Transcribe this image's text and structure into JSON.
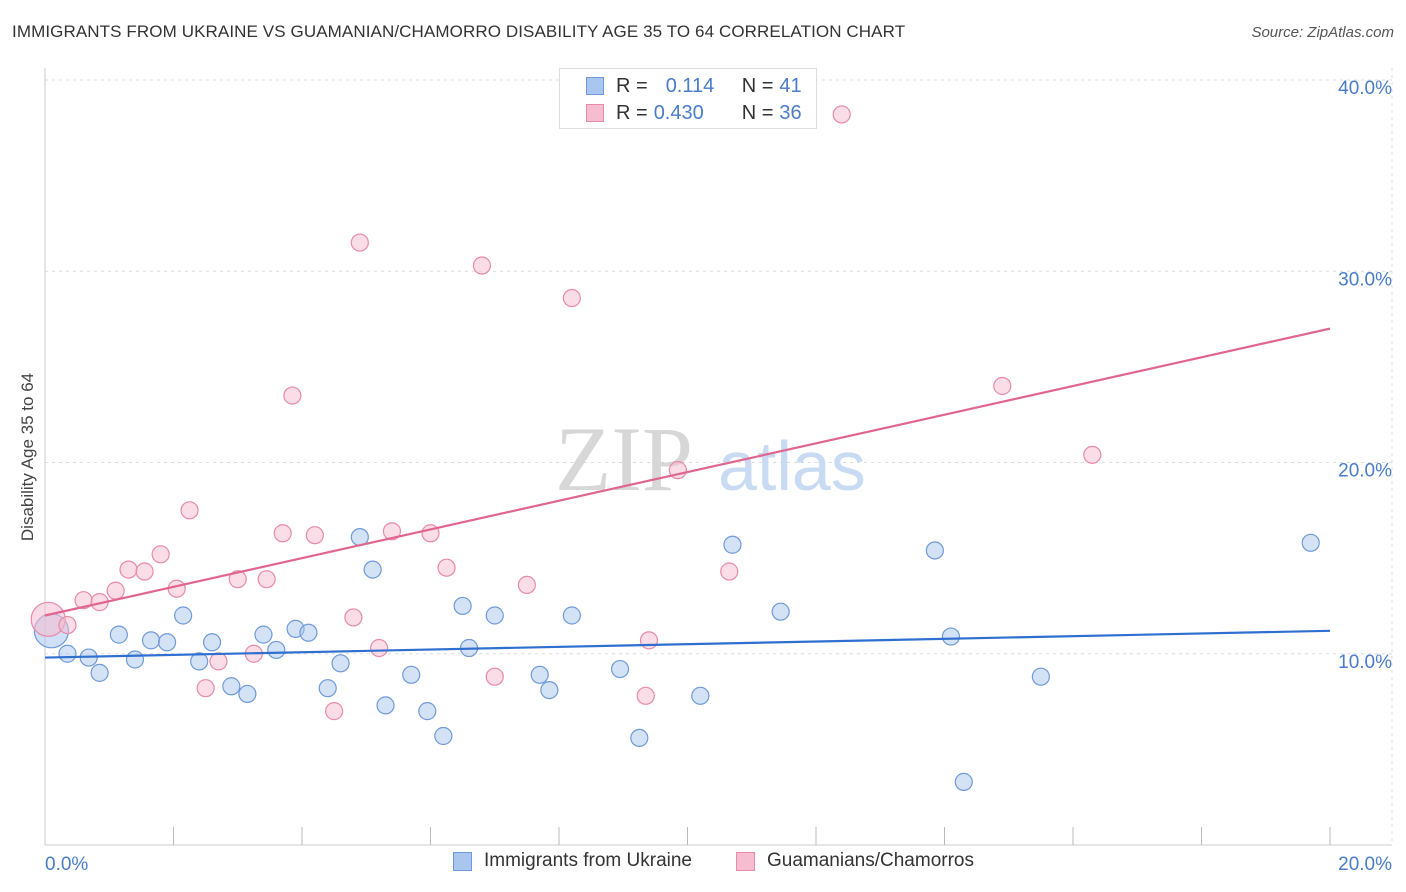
{
  "header": {
    "title": "IMMIGRANTS FROM UKRAINE VS GUAMANIAN/CHAMORRO DISABILITY AGE 35 TO 64 CORRELATION CHART",
    "source": "Source: ZipAtlas.com"
  },
  "legend": {
    "rows": [
      {
        "r_label": "R =",
        "r_value": "0.114",
        "n_label": "N =",
        "n_value": "41"
      },
      {
        "r_label": "R =",
        "r_value": "0.430",
        "n_label": "N =",
        "n_value": "36"
      }
    ],
    "bottom": [
      "Immigrants from Ukraine",
      "Guamanians/Chamorros"
    ]
  },
  "watermark": {
    "part1": "ZIP",
    "part2": "atlas"
  },
  "colors": {
    "blue_fill": "#a9c6ee",
    "blue_stroke": "#6f9ad9",
    "blue_line": "#2f6fd0",
    "pink_fill": "#f6bccf",
    "pink_stroke": "#e98aa8",
    "pink_line": "#e0668f",
    "tick_text": "#4a7cc8",
    "grid": "#dcdcdc"
  },
  "chart_data": {
    "type": "scatter",
    "title": "IMMIGRANTS FROM UKRAINE VS GUAMANIAN/CHAMORRO DISABILITY AGE 35 TO 64 CORRELATION CHART",
    "xlabel": "",
    "ylabel": "Disability Age 35 to 64",
    "xlim": [
      0,
      20
    ],
    "ylim": [
      0,
      40
    ],
    "x_ticks": [
      "0.0%",
      "20.0%"
    ],
    "y_ticks": [
      "10.0%",
      "20.0%",
      "30.0%",
      "40.0%"
    ],
    "y_tick_values": [
      10,
      20,
      30,
      40
    ],
    "grid": true,
    "legend_position": "top-center",
    "series": [
      {
        "name": "Immigrants from Ukraine",
        "color": "#a9c6ee",
        "points": [
          {
            "x": 0.1,
            "y": 11.2,
            "size": "large"
          },
          {
            "x": 0.35,
            "y": 10.0
          },
          {
            "x": 0.68,
            "y": 9.8
          },
          {
            "x": 0.85,
            "y": 9.0
          },
          {
            "x": 1.15,
            "y": 11.0
          },
          {
            "x": 1.4,
            "y": 9.7
          },
          {
            "x": 1.65,
            "y": 10.7
          },
          {
            "x": 1.9,
            "y": 10.6
          },
          {
            "x": 2.15,
            "y": 12.0
          },
          {
            "x": 2.4,
            "y": 9.6
          },
          {
            "x": 2.6,
            "y": 10.6
          },
          {
            "x": 2.9,
            "y": 8.3
          },
          {
            "x": 3.15,
            "y": 7.9
          },
          {
            "x": 3.4,
            "y": 11.0
          },
          {
            "x": 3.6,
            "y": 10.2
          },
          {
            "x": 3.9,
            "y": 11.3
          },
          {
            "x": 4.1,
            "y": 11.1
          },
          {
            "x": 4.4,
            "y": 8.2
          },
          {
            "x": 4.6,
            "y": 9.5
          },
          {
            "x": 4.9,
            "y": 16.1
          },
          {
            "x": 5.1,
            "y": 14.4
          },
          {
            "x": 5.3,
            "y": 7.3
          },
          {
            "x": 5.7,
            "y": 8.9
          },
          {
            "x": 5.95,
            "y": 7.0
          },
          {
            "x": 6.2,
            "y": 5.7
          },
          {
            "x": 6.5,
            "y": 12.5
          },
          {
            "x": 6.6,
            "y": 10.3
          },
          {
            "x": 7.0,
            "y": 12.0
          },
          {
            "x": 7.7,
            "y": 8.9
          },
          {
            "x": 7.85,
            "y": 8.1
          },
          {
            "x": 8.2,
            "y": 12.0
          },
          {
            "x": 8.95,
            "y": 9.2
          },
          {
            "x": 9.25,
            "y": 5.6
          },
          {
            "x": 10.2,
            "y": 7.8
          },
          {
            "x": 10.7,
            "y": 15.7
          },
          {
            "x": 11.45,
            "y": 12.2
          },
          {
            "x": 13.85,
            "y": 15.4
          },
          {
            "x": 14.1,
            "y": 10.9
          },
          {
            "x": 14.3,
            "y": 3.3
          },
          {
            "x": 15.5,
            "y": 8.8
          },
          {
            "x": 19.7,
            "y": 15.8
          }
        ],
        "trend": {
          "x": [
            0,
            20
          ],
          "y": [
            9.8,
            11.2
          ]
        }
      },
      {
        "name": "Guamanians/Chamorros",
        "color": "#f6bccf",
        "points": [
          {
            "x": 0.05,
            "y": 11.8,
            "size": "large"
          },
          {
            "x": 0.35,
            "y": 11.5
          },
          {
            "x": 0.6,
            "y": 12.8
          },
          {
            "x": 0.85,
            "y": 12.7
          },
          {
            "x": 1.1,
            "y": 13.3
          },
          {
            "x": 1.3,
            "y": 14.4
          },
          {
            "x": 1.55,
            "y": 14.3
          },
          {
            "x": 1.8,
            "y": 15.2
          },
          {
            "x": 2.05,
            "y": 13.4
          },
          {
            "x": 2.25,
            "y": 17.5
          },
          {
            "x": 2.5,
            "y": 8.2
          },
          {
            "x": 2.7,
            "y": 9.6
          },
          {
            "x": 3.0,
            "y": 13.9
          },
          {
            "x": 3.25,
            "y": 10.0
          },
          {
            "x": 3.45,
            "y": 13.9
          },
          {
            "x": 3.85,
            "y": 23.5
          },
          {
            "x": 3.7,
            "y": 16.3
          },
          {
            "x": 4.2,
            "y": 16.2
          },
          {
            "x": 4.5,
            "y": 7.0
          },
          {
            "x": 4.8,
            "y": 11.9
          },
          {
            "x": 4.9,
            "y": 31.5
          },
          {
            "x": 5.2,
            "y": 10.3
          },
          {
            "x": 5.4,
            "y": 16.4
          },
          {
            "x": 6.0,
            "y": 16.3
          },
          {
            "x": 6.25,
            "y": 14.5
          },
          {
            "x": 6.8,
            "y": 30.3
          },
          {
            "x": 7.0,
            "y": 8.8
          },
          {
            "x": 7.5,
            "y": 13.6
          },
          {
            "x": 8.2,
            "y": 28.6
          },
          {
            "x": 9.35,
            "y": 7.8
          },
          {
            "x": 9.4,
            "y": 10.7
          },
          {
            "x": 9.85,
            "y": 19.6
          },
          {
            "x": 10.65,
            "y": 14.3
          },
          {
            "x": 12.4,
            "y": 38.2
          },
          {
            "x": 14.9,
            "y": 24.0
          },
          {
            "x": 16.3,
            "y": 20.4
          }
        ],
        "trend": {
          "x": [
            0,
            20
          ],
          "y": [
            12.0,
            27.0
          ]
        }
      }
    ]
  }
}
